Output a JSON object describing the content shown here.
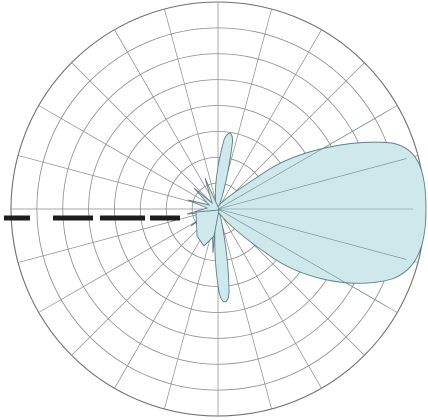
{
  "diagram": {
    "type": "polar-radiation-pattern",
    "colors": {
      "lobe_fill": "#cfe8ec",
      "lobe_stroke": "#5f7f86",
      "grid": "#8a8a8a",
      "dash": "#1d1d1d"
    },
    "grid": {
      "rings": 8,
      "radial_step_deg": 15
    }
  }
}
